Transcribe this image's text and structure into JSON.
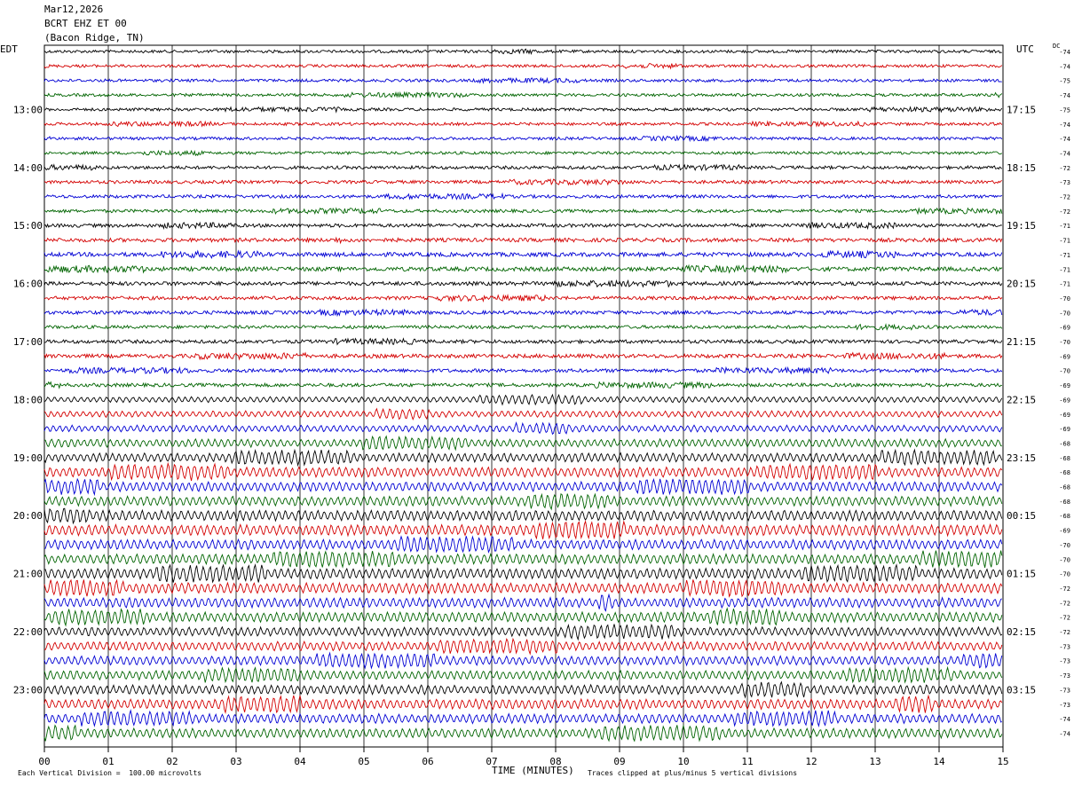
{
  "header": {
    "date": "Mar12,2026",
    "station": "BCRT EHZ ET 00",
    "location": "(Bacon Ridge, TN)"
  },
  "left_timezone": "EDT",
  "right_timezone": "UTC",
  "dc_label": "DC",
  "footer": {
    "scale_note": "Each Vertical Division =  100.00 microvolts",
    "x_axis_title": "TIME (MINUTES)",
    "clip_note": "Traces clipped at plus/minus 5 vertical divisions"
  },
  "chart_data": {
    "type": "helicorder",
    "x": {
      "min": 0,
      "max": 15,
      "unit": "minutes",
      "ticks": [
        "00",
        "01",
        "02",
        "03",
        "04",
        "05",
        "06",
        "07",
        "08",
        "09",
        "10",
        "11",
        "12",
        "13",
        "14",
        "15"
      ]
    },
    "trace_colors": [
      "#000000",
      "#d40000",
      "#0000d4",
      "#006400"
    ],
    "grid_vertical_lines": true,
    "traces_per_hour": 4,
    "rows": 48,
    "left_time_labels": [
      "13:00",
      "14:00",
      "15:00",
      "16:00",
      "17:00",
      "18:00",
      "19:00",
      "20:00",
      "21:00",
      "22:00",
      "23:00"
    ],
    "right_time_labels": [
      "17:15",
      "18:15",
      "19:15",
      "20:15",
      "21:15",
      "22:15",
      "23:15",
      "00:15",
      "01:15",
      "02:15",
      "03:15"
    ],
    "hour_label_first_row": 4,
    "dc_offsets": [
      -74,
      -74,
      -75,
      -74,
      -75,
      -74,
      -74,
      -74,
      -72,
      -73,
      -72,
      -72,
      -71,
      -71,
      -71,
      -71,
      -71,
      -70,
      -70,
      -69,
      -70,
      -69,
      -70,
      -69,
      -69,
      -69,
      -69,
      -68,
      -68,
      -68,
      -68,
      -68,
      -68,
      -69,
      -70,
      -70,
      -70,
      -72,
      -72,
      -72,
      -72,
      -73,
      -73,
      -73,
      -73,
      -73,
      -74,
      -74
    ],
    "amplitude_profile": [
      0.9,
      0.9,
      0.9,
      0.9,
      0.9,
      0.9,
      0.9,
      0.9,
      1.0,
      1.0,
      1.0,
      1.0,
      1.1,
      1.2,
      1.3,
      1.3,
      1.2,
      1.1,
      1.1,
      1.0,
      1.1,
      1.2,
      1.1,
      1.1,
      1.3,
      1.4,
      1.5,
      1.8,
      2.0,
      2.2,
      2.1,
      2.1,
      2.3,
      2.4,
      2.2,
      2.2,
      2.3,
      2.3,
      2.2,
      2.2,
      2.0,
      2.0,
      2.0,
      2.0,
      2.1,
      2.2,
      2.1,
      2.1
    ]
  }
}
